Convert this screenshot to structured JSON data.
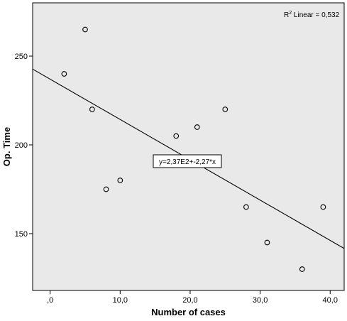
{
  "chart_data": {
    "type": "scatter",
    "xlabel": "Number of cases",
    "ylabel": "Op. Time",
    "xlim": [
      -2.5,
      42
    ],
    "ylim": [
      118,
      280
    ],
    "x_ticks": [
      {
        "value": 0,
        "label": ",0"
      },
      {
        "value": 10,
        "label": "10,0"
      },
      {
        "value": 20,
        "label": "20,0"
      },
      {
        "value": 30,
        "label": "30,0"
      },
      {
        "value": 40,
        "label": "40,0"
      }
    ],
    "y_ticks": [
      {
        "value": 150,
        "label": "150"
      },
      {
        "value": 200,
        "label": "200"
      },
      {
        "value": 250,
        "label": "250"
      }
    ],
    "points": [
      {
        "x": 2,
        "y": 240
      },
      {
        "x": 5,
        "y": 265
      },
      {
        "x": 6,
        "y": 220
      },
      {
        "x": 8,
        "y": 175
      },
      {
        "x": 10,
        "y": 180
      },
      {
        "x": 18,
        "y": 205
      },
      {
        "x": 21,
        "y": 210
      },
      {
        "x": 25,
        "y": 220
      },
      {
        "x": 28,
        "y": 165
      },
      {
        "x": 31,
        "y": 145
      },
      {
        "x": 36,
        "y": 130
      },
      {
        "x": 39,
        "y": 165
      }
    ],
    "fit_line": {
      "intercept": 237,
      "slope": -2.27,
      "equation_label": "y=2,37E2+-2,27*x"
    },
    "r2_label": {
      "prefix": "R",
      "superscript": "2",
      "suffix": " Linear = 0,532"
    },
    "grid": false,
    "plot_background": "#e9e9e9",
    "marker_color": "#000000",
    "line_color": "#000000"
  }
}
